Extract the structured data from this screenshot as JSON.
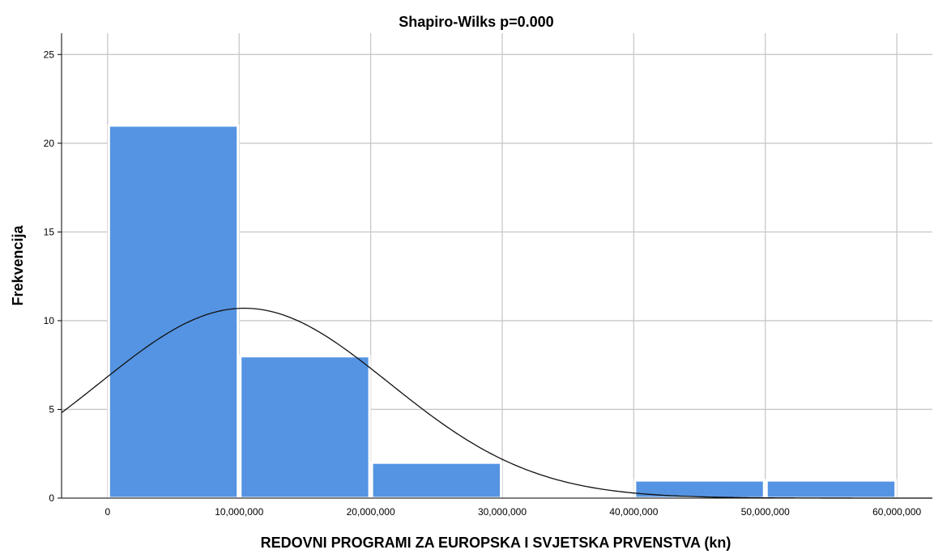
{
  "chart_data": {
    "type": "bar",
    "title": "Shapiro-Wilks p=0.000",
    "xlabel": "REDOVNI PROGRAMI ZA EUROPSKA I SVJETSKA PRVENSTVA (kn)",
    "ylabel": "Frekvencija",
    "xlim": [
      -3500000,
      62700000
    ],
    "ylim": [
      0,
      26.2
    ],
    "x_ticks": [
      0,
      10000000,
      20000000,
      30000000,
      40000000,
      50000000,
      60000000
    ],
    "x_tick_labels": [
      "0",
      "10,000,000",
      "20,000,000",
      "30,000,000",
      "40,000,000",
      "50,000,000",
      "60,000,000"
    ],
    "y_ticks": [
      0,
      5,
      10,
      15,
      20,
      25
    ],
    "y_tick_labels": [
      "0",
      "5",
      "10",
      "15",
      "20",
      "25"
    ],
    "bins": [
      {
        "x0": 0,
        "x1": 10000000,
        "count": 21
      },
      {
        "x0": 10000000,
        "x1": 20000000,
        "count": 8
      },
      {
        "x0": 20000000,
        "x1": 30000000,
        "count": 2
      },
      {
        "x0": 30000000,
        "x1": 40000000,
        "count": 0
      },
      {
        "x0": 40000000,
        "x1": 50000000,
        "count": 1
      },
      {
        "x0": 50000000,
        "x1": 60000000,
        "count": 1
      }
    ],
    "normal_curve": {
      "mean": 10400000,
      "sd": 11000000,
      "peak": 10.7
    },
    "grid": true,
    "colors": {
      "bar": "#5594e2",
      "grid": "#c8c8c8",
      "curve": "#111111"
    }
  }
}
